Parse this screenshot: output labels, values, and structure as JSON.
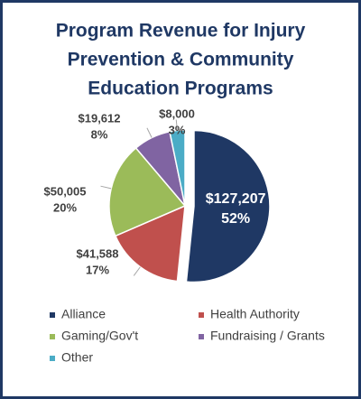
{
  "chart_data": {
    "type": "pie",
    "title": [
      "Program Revenue for Injury",
      "Prevention & Community",
      "Education Programs"
    ],
    "categories": [
      "Alliance",
      "Health Authority",
      "Gaming/Gov't",
      "Fundraising / Grants",
      "Other"
    ],
    "values": [
      127207,
      41588,
      50005,
      19612,
      8000
    ],
    "value_labels": [
      "$127,207",
      "$41,588",
      "$50,005",
      "$19,612",
      "$8,000"
    ],
    "percent_values": [
      52,
      17,
      20,
      8,
      3
    ],
    "percent_labels": [
      "52%",
      "17%",
      "20%",
      "8%",
      "3%"
    ],
    "colors": [
      "#1f3864",
      "#c0504d",
      "#9bbb59",
      "#8064a2",
      "#4bacc6"
    ]
  }
}
